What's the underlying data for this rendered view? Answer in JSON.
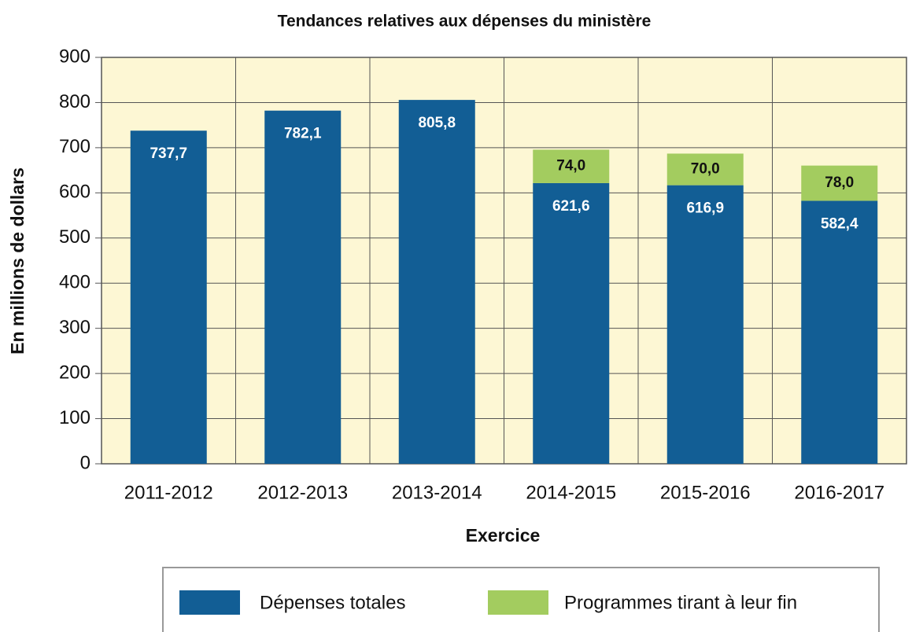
{
  "chart_data": {
    "type": "stacked_bar",
    "title": "Tendances relatives aux dépenses du ministère",
    "xlabel": "Exercice",
    "ylabel": "En millions de dollars",
    "categories": [
      "2011-2012",
      "2012-2013",
      "2013-2014",
      "2014-2015",
      "2015-2016",
      "2016-2017"
    ],
    "series": [
      {
        "name": "Dépenses totales",
        "color": "#125e95",
        "values": [
          737.7,
          782.1,
          805.8,
          621.6,
          616.9,
          582.4
        ],
        "value_labels": [
          "737,7",
          "782,1",
          "805,8",
          "621,6",
          "616,9",
          "582,4"
        ]
      },
      {
        "name": "Programmes tirant à leur fin",
        "color": "#a3cc5f",
        "values": [
          null,
          null,
          null,
          74.0,
          70.0,
          78.0
        ],
        "value_labels": [
          null,
          null,
          null,
          "74,0",
          "70,0",
          "78,0"
        ]
      }
    ],
    "ylim": [
      0,
      900
    ],
    "yticks": [
      0,
      100,
      200,
      300,
      400,
      500,
      600,
      700,
      800,
      900
    ],
    "grid": true
  }
}
